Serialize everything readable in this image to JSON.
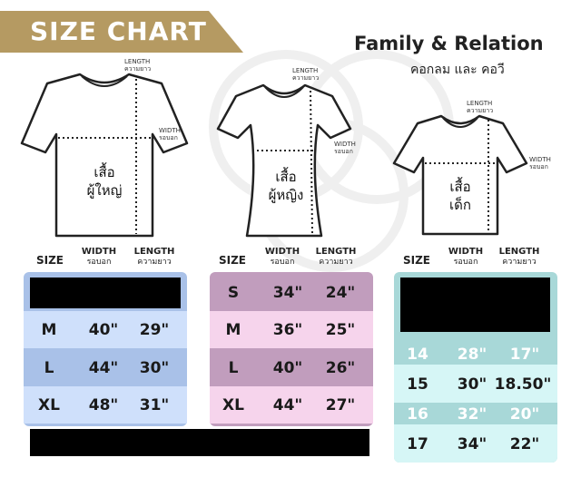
{
  "banner": {
    "text": "SIZE CHART"
  },
  "title": "Family & Relation",
  "subtitle": "คอกลม และ คอวี",
  "measure_labels": {
    "length_en": "LENGTH",
    "length_th": "ความยาว",
    "width_en": "WIDTH",
    "width_th": "รอบอก"
  },
  "shirts": {
    "adult": {
      "line1": "เสื้อ",
      "line2": "ผู้ใหญ่"
    },
    "women": {
      "line1": "เสื้อ",
      "line2": "ผู้หญิง"
    },
    "kids": {
      "line1": "เสื้อ",
      "line2": "เด็ก"
    }
  },
  "headers": {
    "size": "SIZE",
    "width_en": "WIDTH",
    "width_th": "รอบอก",
    "length_en": "LENGTH",
    "length_th": "ความยาว"
  },
  "adult_table": {
    "rows": [
      {
        "size": "M",
        "width": "40\"",
        "length": "29\""
      },
      {
        "size": "L",
        "width": "44\"",
        "length": "30\""
      },
      {
        "size": "XL",
        "width": "48\"",
        "length": "31\""
      }
    ]
  },
  "women_table": {
    "rows": [
      {
        "size": "S",
        "width": "34\"",
        "length": "24\""
      },
      {
        "size": "M",
        "width": "36\"",
        "length": "25\""
      },
      {
        "size": "L",
        "width": "40\"",
        "length": "26\""
      },
      {
        "size": "XL",
        "width": "44\"",
        "length": "27\""
      }
    ]
  },
  "kids_table": {
    "rows": [
      {
        "size": "14",
        "width": "28\"",
        "length": "17\""
      },
      {
        "size": "15",
        "width": "30\"",
        "length": "18.50\""
      },
      {
        "size": "16",
        "width": "32\"",
        "length": "20\""
      },
      {
        "size": "17",
        "width": "34\"",
        "length": "22\""
      }
    ]
  },
  "colors": {
    "banner": "#b59a62",
    "adult_light": "#cfe0fb",
    "adult_dark": "#a9c1e8",
    "women_light": "#f6d4ec",
    "women_dark": "#c19dbd",
    "kids_light": "#d6f6f6",
    "kids_dark": "#a8d8d8"
  }
}
